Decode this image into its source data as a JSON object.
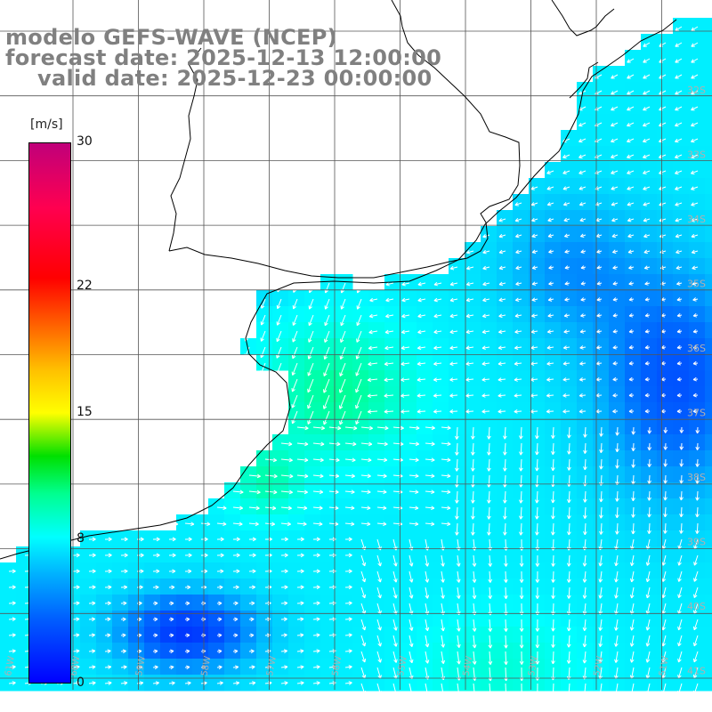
{
  "title": {
    "line1": "modelo GEFS-WAVE (NCEP)",
    "line2": "forecast date: 2025-12-13 12:00:00",
    "line3": "valid date: 2025-12-23 00:00:00"
  },
  "colorbar": {
    "unit": "[m/s]",
    "ticks": [
      "30",
      "22",
      "15",
      "8",
      "0"
    ],
    "tick_values": [
      30,
      22,
      15,
      8,
      0
    ],
    "range": [
      0,
      30
    ],
    "colors": [
      "#0000ff",
      "#00b0ff",
      "#00ffff",
      "#00e000",
      "#ffff00",
      "#ff7000",
      "#ff0000",
      "#c0007a"
    ]
  },
  "map": {
    "lat_labels": [
      "32S",
      "33S",
      "34S",
      "35S",
      "36S",
      "37S",
      "38S",
      "39S",
      "40S",
      "41S"
    ],
    "lon_labels": [
      "61W",
      "60W",
      "59W",
      "58W",
      "57W",
      "56W",
      "55W",
      "54W",
      "53W",
      "52W",
      "51W"
    ],
    "land_color": "#ffffff",
    "coast_color": "#000000",
    "grid_color": "#555555",
    "arrow_color": "#ffffff"
  }
}
